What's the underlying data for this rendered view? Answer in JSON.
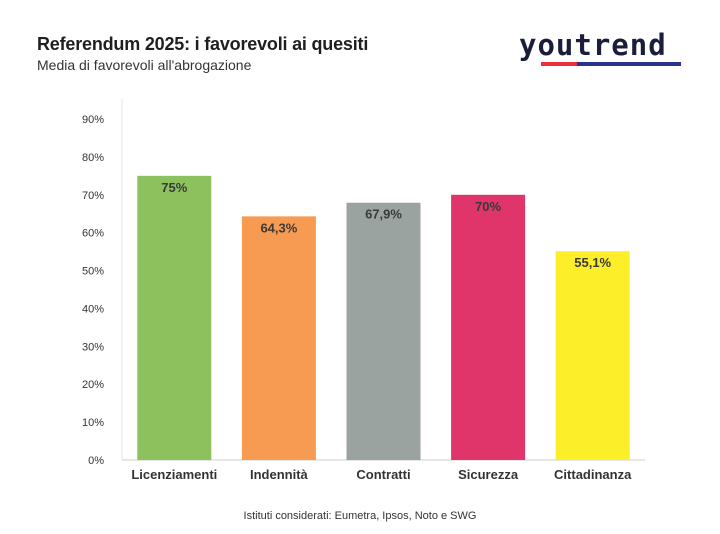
{
  "header": {
    "title": "Referendum 2025: i favorevoli ai quesiti",
    "subtitle": "Media di favorevoli all'abrogazione",
    "logo_text": "youtrend"
  },
  "footer": {
    "note": "Istituti considerati: Eumetra, Ipsos, Noto e SWG"
  },
  "chart_data": {
    "type": "bar",
    "title": "Referendum 2025: i favorevoli ai quesiti",
    "subtitle": "Media di favorevoli all'abrogazione",
    "categories": [
      "Licenziamenti",
      "Indennità",
      "Contratti",
      "Sicurezza",
      "Cittadinanza"
    ],
    "values": [
      75,
      64.3,
      67.9,
      70,
      55.1
    ],
    "value_labels": [
      "75%",
      "64,3%",
      "67,9%",
      "70%",
      "55,1%"
    ],
    "colors": [
      "#8dc15d",
      "#f79a52",
      "#9aa3a0",
      "#e0356a",
      "#fdee2a"
    ],
    "ylim": [
      0,
      90
    ],
    "yticks": [
      0,
      10,
      20,
      30,
      40,
      50,
      60,
      70,
      80,
      90
    ],
    "ytick_labels": [
      "0%",
      "10%",
      "20%",
      "30%",
      "40%",
      "50%",
      "60%",
      "70%",
      "80%",
      "90%"
    ],
    "xlabel": "",
    "ylabel": "",
    "grid": false,
    "legend": "none"
  }
}
